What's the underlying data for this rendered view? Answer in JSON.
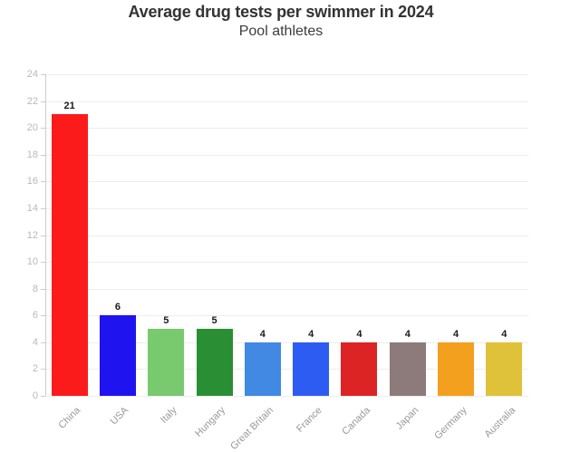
{
  "chart_data": {
    "type": "bar",
    "title": "Average drug tests per swimmer in 2024",
    "subtitle": "Pool athletes",
    "categories": [
      "China",
      "USA",
      "Italy",
      "Hungary",
      "Great Britain",
      "France",
      "Canada",
      "Japan",
      "Germany",
      "Australia"
    ],
    "values": [
      21,
      6,
      5,
      5,
      4,
      4,
      4,
      4,
      4,
      4
    ],
    "value_labels": [
      "21",
      "6",
      "5",
      "5",
      "4",
      "4",
      "4",
      "4",
      "4",
      "4"
    ],
    "colors": [
      "#fb1b1b",
      "#1f13f0",
      "#79c96f",
      "#2a8f34",
      "#4189e2",
      "#2d5cf3",
      "#dc2424",
      "#8d7b7b",
      "#f4a01f",
      "#dfc23a"
    ],
    "xlabel": "",
    "ylabel": "",
    "ylim": [
      0,
      24
    ],
    "ytick_step": 2,
    "ytick_labels": [
      "0",
      "2",
      "4",
      "6",
      "8",
      "10",
      "12",
      "14",
      "16",
      "18",
      "20",
      "22",
      "24"
    ],
    "grid": true,
    "legend": "none",
    "styles": {
      "background": "#ffffff",
      "grid_color": "#ededed",
      "axis_color": "#cccccc",
      "ytick_label_color": "#b9b9b9",
      "xtick_label_color": "#999999",
      "value_label_color": "#1a1a1a",
      "title_color": "#333333",
      "subtitle_color": "#3d3d3d"
    }
  }
}
